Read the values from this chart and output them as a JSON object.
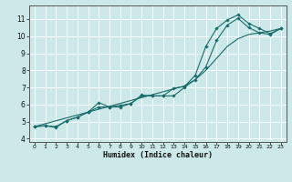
{
  "xlabel": "Humidex (Indice chaleur)",
  "ylabel": "",
  "background_color": "#cce8e8",
  "grid_color": "#ffffff",
  "line_color": "#1a6b6b",
  "xlim": [
    -0.5,
    23.5
  ],
  "ylim": [
    3.8,
    11.8
  ],
  "xticks": [
    0,
    1,
    2,
    3,
    4,
    5,
    6,
    7,
    8,
    9,
    10,
    11,
    12,
    13,
    14,
    15,
    16,
    17,
    18,
    19,
    20,
    21,
    22,
    23
  ],
  "yticks": [
    4,
    5,
    6,
    7,
    8,
    9,
    10,
    11
  ],
  "line1_x": [
    0,
    1,
    2,
    3,
    4,
    5,
    6,
    7,
    8,
    9,
    10,
    11,
    12,
    13,
    14,
    15,
    16,
    17,
    18,
    19,
    20,
    21,
    22,
    23
  ],
  "line1_y": [
    4.7,
    4.75,
    4.65,
    5.05,
    5.25,
    5.55,
    6.1,
    5.85,
    5.95,
    6.05,
    6.55,
    6.5,
    6.5,
    6.95,
    7.05,
    7.7,
    9.4,
    10.45,
    10.95,
    11.25,
    10.75,
    10.45,
    10.15,
    10.45
  ],
  "line2_x": [
    0,
    1,
    2,
    3,
    4,
    5,
    6,
    7,
    8,
    9,
    10,
    11,
    12,
    13,
    14,
    15,
    16,
    17,
    18,
    19,
    20,
    21,
    22,
    23
  ],
  "line2_y": [
    4.7,
    4.75,
    4.7,
    5.05,
    5.25,
    5.55,
    5.85,
    5.85,
    5.85,
    6.05,
    6.5,
    6.5,
    6.5,
    6.5,
    7.0,
    7.45,
    8.2,
    9.75,
    10.65,
    11.05,
    10.5,
    10.2,
    10.1,
    10.45
  ],
  "line3_x": [
    0,
    1,
    2,
    3,
    4,
    5,
    6,
    7,
    8,
    9,
    10,
    11,
    12,
    13,
    14,
    15,
    16,
    17,
    18,
    19,
    20,
    21,
    22,
    23
  ],
  "line3_y": [
    4.7,
    4.87,
    5.04,
    5.21,
    5.38,
    5.55,
    5.72,
    5.89,
    6.06,
    6.23,
    6.4,
    6.57,
    6.74,
    6.91,
    7.08,
    7.45,
    8.0,
    8.7,
    9.4,
    9.85,
    10.1,
    10.2,
    10.3,
    10.45
  ]
}
